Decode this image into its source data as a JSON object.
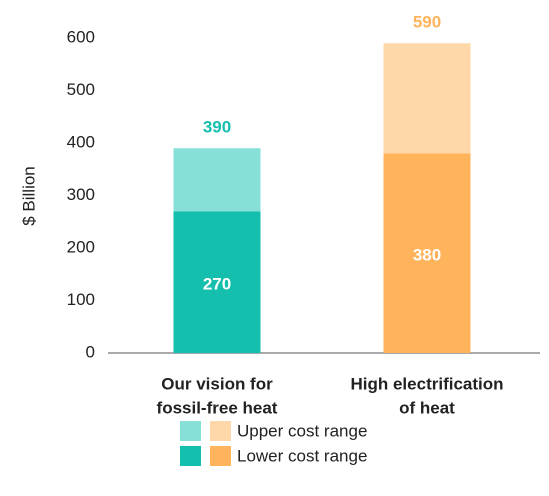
{
  "chart_data": {
    "type": "stacked-bar",
    "categories": [
      [
        "Our vision for",
        "fossil-free heat"
      ],
      [
        "High electrification",
        "of heat"
      ]
    ],
    "ylabel": "$ Billion",
    "ylim": [
      0,
      600
    ],
    "yticks": [
      0,
      100,
      200,
      300,
      400,
      500,
      600
    ],
    "series": [
      {
        "name": "Lower cost range",
        "color": [
          "#14bfae",
          "#ffb45c"
        ],
        "values": [
          270,
          380
        ]
      },
      {
        "name": "Upper cost range",
        "color": [
          "#86e0d8",
          "#ffd7a8"
        ],
        "values": [
          120,
          210
        ]
      }
    ],
    "totals": [
      390,
      590
    ],
    "total_colors": [
      "#14bfae",
      "#ffb45c"
    ]
  }
}
